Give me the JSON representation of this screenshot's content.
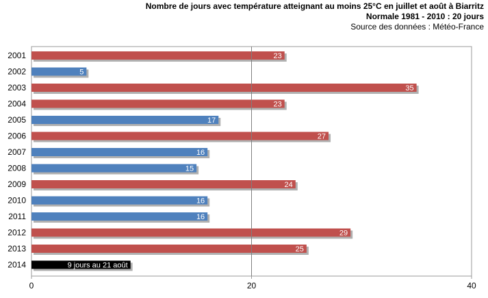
{
  "header": {
    "title": "Nombre de jours avec température atteignant au moins 25°C en juillet  et août à Biarritz",
    "subtitle": "Normale 1981 - 2010 : 20 jours",
    "source": "Source des données : Météo-France"
  },
  "chart_data": {
    "type": "bar",
    "orientation": "horizontal",
    "title": "Nombre de jours avec température atteignant au moins 25°C en juillet  et août à Biarritz",
    "subtitle": "Normale 1981 - 2010 : 20 jours",
    "categories": [
      "2001",
      "2002",
      "2003",
      "2004",
      "2005",
      "2006",
      "2007",
      "2008",
      "2009",
      "2010",
      "2011",
      "2012",
      "2013",
      "2014"
    ],
    "values": [
      23,
      5,
      35,
      23,
      17,
      27,
      16,
      15,
      24,
      16,
      16,
      29,
      25,
      9
    ],
    "value_labels": [
      "23",
      "5",
      "35",
      "23",
      "17",
      "27",
      "16",
      "15",
      "24",
      "16",
      "16",
      "29",
      "25",
      "9 jours au 21 août"
    ],
    "bar_classes": [
      "above",
      "below",
      "above",
      "above",
      "below",
      "above",
      "below",
      "below",
      "above",
      "below",
      "below",
      "above",
      "above",
      "current"
    ],
    "colors": {
      "above": "#c0504d",
      "below": "#4f81bd",
      "current": "#000000",
      "reference_line": "#7f7f7f",
      "frame": "#999999",
      "shadow": "#b0b0b0"
    },
    "reference_value": 20,
    "xlim": [
      0,
      40
    ],
    "xticks": [
      0,
      20,
      40
    ],
    "xlabel": "",
    "ylabel": "",
    "grid": false,
    "legend": "none"
  }
}
